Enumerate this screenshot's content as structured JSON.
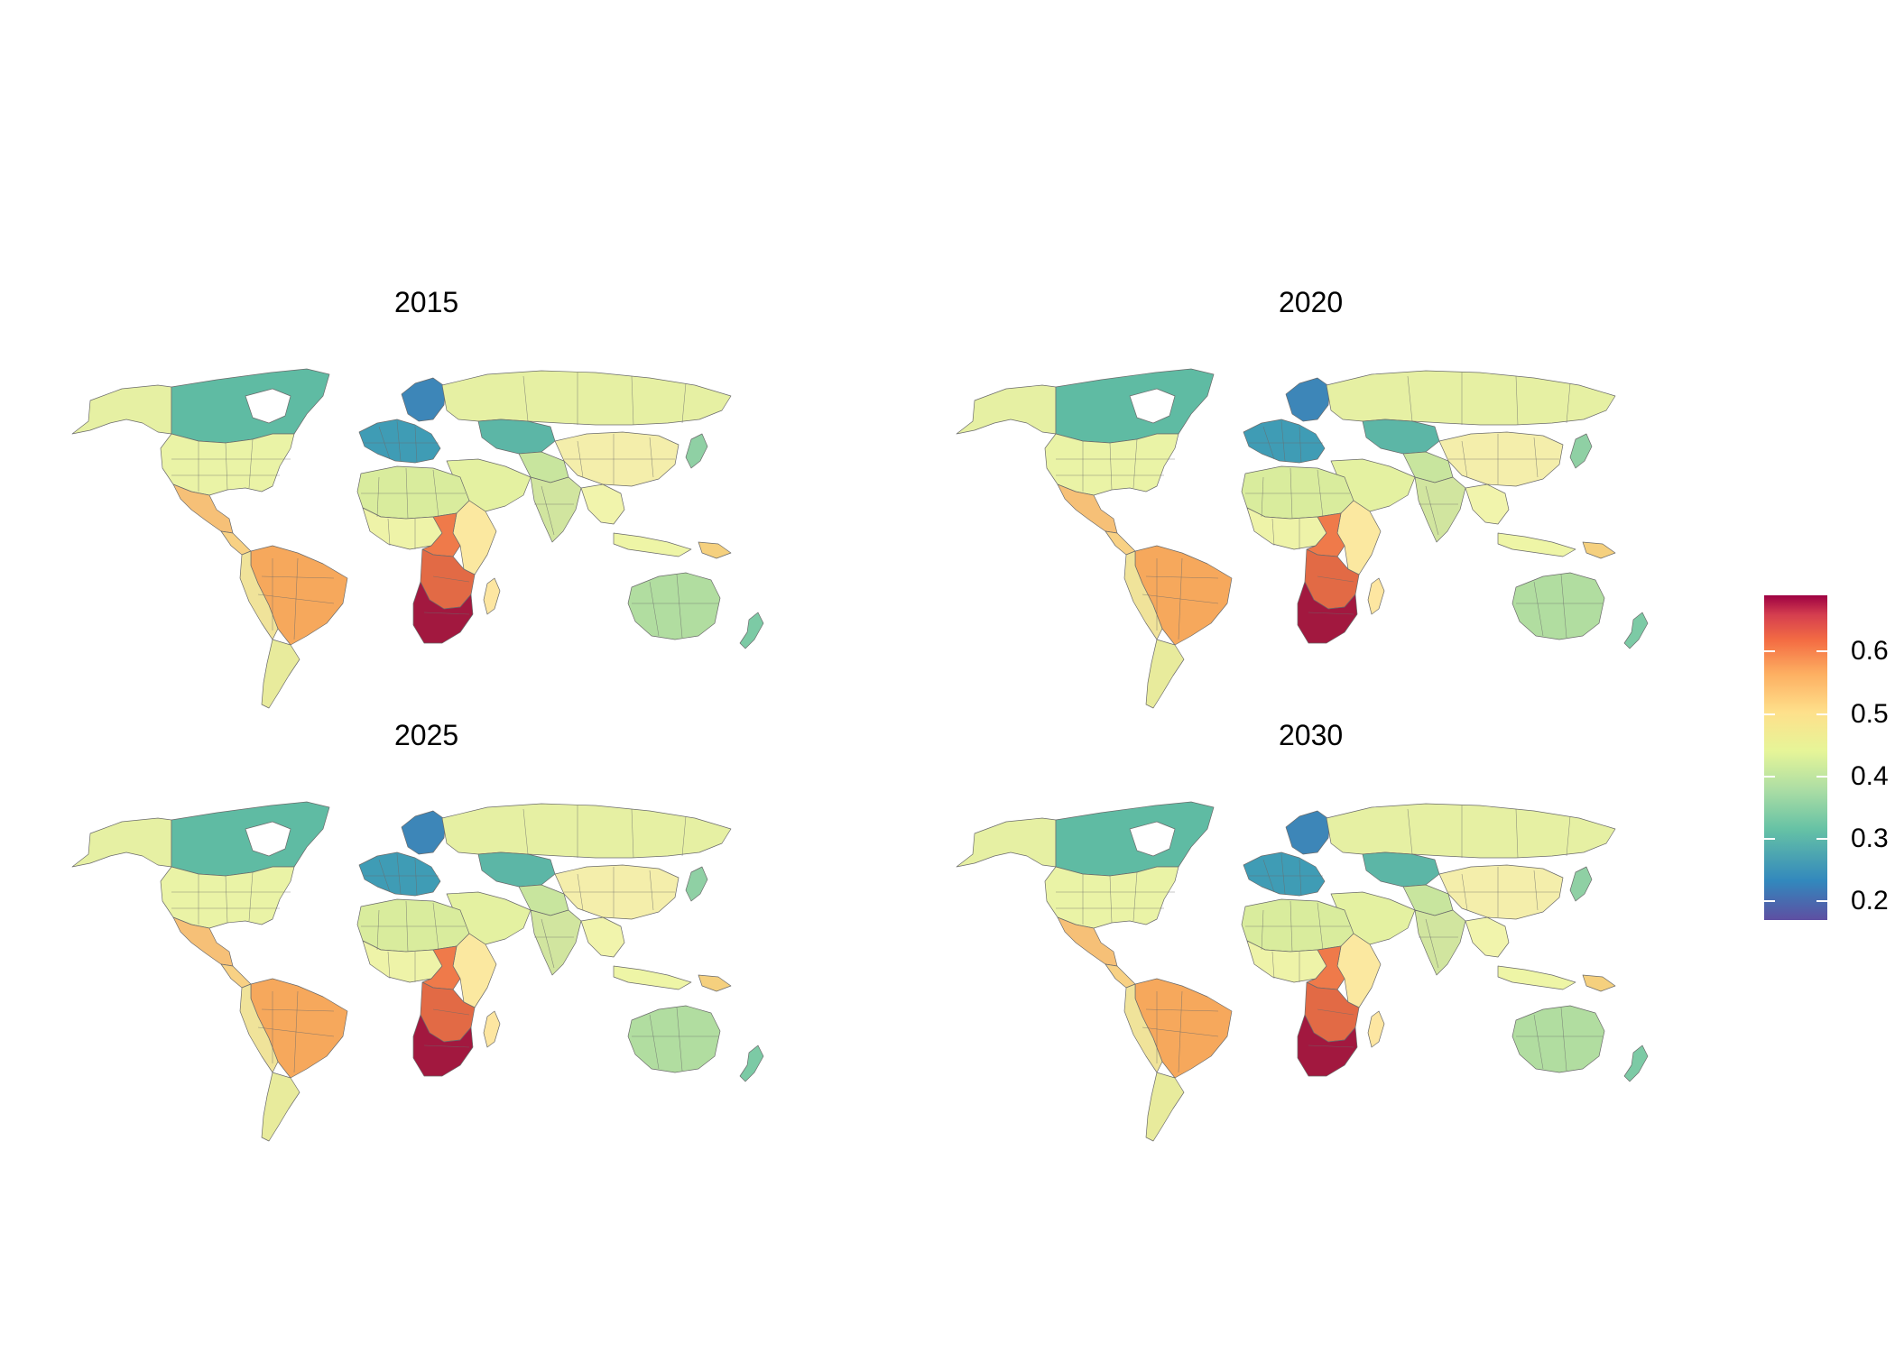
{
  "panels": [
    {
      "title": "2015"
    },
    {
      "title": "2020"
    },
    {
      "title": "2025"
    },
    {
      "title": "2030"
    }
  ],
  "legend": {
    "title": "",
    "ticks": [
      "0.6",
      "0.5",
      "0.4",
      "0.3",
      "0.2"
    ],
    "tick_values": [
      0.6,
      0.5,
      0.4,
      0.3,
      0.2
    ],
    "range": [
      0.17,
      0.69
    ],
    "palette": [
      "#5e4fa2",
      "#3288bd",
      "#66c2a5",
      "#abdda4",
      "#e6f598",
      "#fee08b",
      "#fdae61",
      "#f46d43",
      "#d53e4f",
      "#9e0142"
    ]
  },
  "region_colors": {
    "alaska": "#e6f0a3",
    "canada": "#5fbba3",
    "usa": "#eaf3a6",
    "mexico": "#f6c077",
    "central_america": "#f8d184",
    "south_america_brazil": "#f6a85c",
    "south_america_west": "#f0e39a",
    "south_america_south": "#e8eb9c",
    "greenland": "#ffffff",
    "europe_west": "#3f9cb5",
    "scandinavia": "#3d86b8",
    "russia": "#e6f0a3",
    "kazakhstan": "#5cb6a6",
    "central_asia": "#c8e59e",
    "china": "#f4eeab",
    "india": "#d1e59f",
    "middle_east": "#e4f1a1",
    "north_africa": "#d9ec9d",
    "west_africa": "#eef3a8",
    "central_africa": "#ef7a4a",
    "east_africa": "#fbe8a0",
    "southern_africa_mid": "#e26a45",
    "south_africa": "#a2183f",
    "madagascar": "#fde6a1",
    "southeast_asia": "#f1f4ac",
    "indonesia": "#eef5a6",
    "japan": "#8fd0a4",
    "australia": "#b1dda0",
    "new_zealand": "#7ccaa5",
    "papua": "#f5d07e"
  }
}
